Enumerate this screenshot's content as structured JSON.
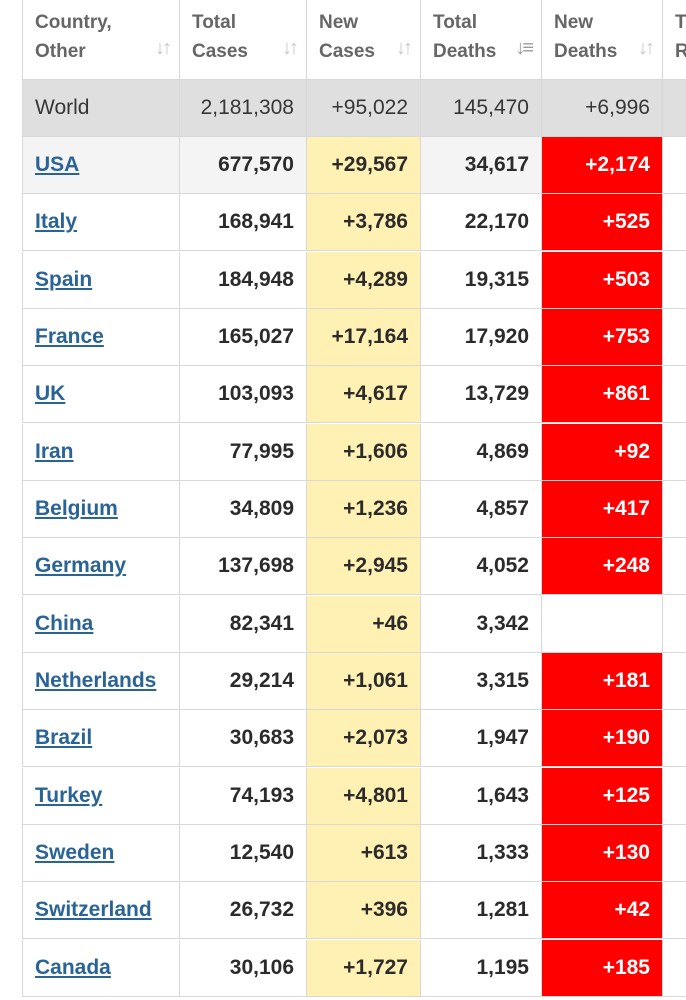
{
  "columns": [
    {
      "line1": "Country,",
      "line2": "Other",
      "sort_icon": "sort-arrows-icon"
    },
    {
      "line1": "Total",
      "line2": "Cases",
      "sort_icon": "sort-arrows-icon"
    },
    {
      "line1": "New",
      "line2": "Cases",
      "sort_icon": "sort-arrows-icon"
    },
    {
      "line1": "Total",
      "line2": "Deaths",
      "sort_icon": "sort-descending-icon"
    },
    {
      "line1": "New",
      "line2": "Deaths",
      "sort_icon": "sort-arrows-icon"
    },
    {
      "line1": "T",
      "line2": "R"
    }
  ],
  "colors": {
    "new_cases_bg": "#fff0b3",
    "new_deaths_bg": "#ff0000",
    "world_row_bg": "#dfdfdf",
    "link": "#2a6496"
  },
  "world": {
    "country": "World",
    "total_cases": "2,181,308",
    "new_cases": "+95,022",
    "total_deaths": "145,470",
    "new_deaths": "+6,996"
  },
  "rows": [
    {
      "country": "USA",
      "total_cases": "677,570",
      "new_cases": "+29,567",
      "total_deaths": "34,617",
      "new_deaths": "+2,174"
    },
    {
      "country": "Italy",
      "total_cases": "168,941",
      "new_cases": "+3,786",
      "total_deaths": "22,170",
      "new_deaths": "+525"
    },
    {
      "country": "Spain",
      "total_cases": "184,948",
      "new_cases": "+4,289",
      "total_deaths": "19,315",
      "new_deaths": "+503"
    },
    {
      "country": "France",
      "total_cases": "165,027",
      "new_cases": "+17,164",
      "total_deaths": "17,920",
      "new_deaths": "+753"
    },
    {
      "country": "UK",
      "total_cases": "103,093",
      "new_cases": "+4,617",
      "total_deaths": "13,729",
      "new_deaths": "+861"
    },
    {
      "country": "Iran",
      "total_cases": "77,995",
      "new_cases": "+1,606",
      "total_deaths": "4,869",
      "new_deaths": "+92"
    },
    {
      "country": "Belgium",
      "total_cases": "34,809",
      "new_cases": "+1,236",
      "total_deaths": "4,857",
      "new_deaths": "+417"
    },
    {
      "country": "Germany",
      "total_cases": "137,698",
      "new_cases": "+2,945",
      "total_deaths": "4,052",
      "new_deaths": "+248"
    },
    {
      "country": "China",
      "total_cases": "82,341",
      "new_cases": "+46",
      "total_deaths": "3,342",
      "new_deaths": ""
    },
    {
      "country": "Netherlands",
      "total_cases": "29,214",
      "new_cases": "+1,061",
      "total_deaths": "3,315",
      "new_deaths": "+181"
    },
    {
      "country": "Brazil",
      "total_cases": "30,683",
      "new_cases": "+2,073",
      "total_deaths": "1,947",
      "new_deaths": "+190"
    },
    {
      "country": "Turkey",
      "total_cases": "74,193",
      "new_cases": "+4,801",
      "total_deaths": "1,643",
      "new_deaths": "+125"
    },
    {
      "country": "Sweden",
      "total_cases": "12,540",
      "new_cases": "+613",
      "total_deaths": "1,333",
      "new_deaths": "+130"
    },
    {
      "country": "Switzerland",
      "total_cases": "26,732",
      "new_cases": "+396",
      "total_deaths": "1,281",
      "new_deaths": "+42"
    },
    {
      "country": "Canada",
      "total_cases": "30,106",
      "new_cases": "+1,727",
      "total_deaths": "1,195",
      "new_deaths": "+185"
    }
  ]
}
